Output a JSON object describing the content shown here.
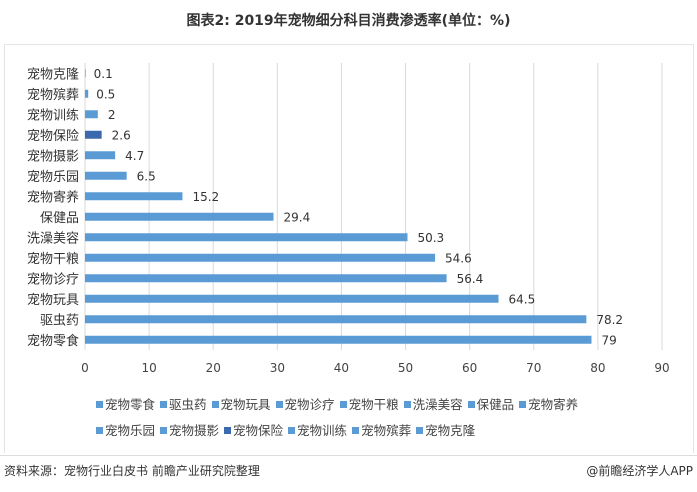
{
  "title": "图表2: 2019年宠物细分科目消费渗透率(单位：%)",
  "source": "资料来源：宠物行业白皮书 前瞻产业研究院整理",
  "credit": "@前瞻经济学人APP",
  "chart_data": {
    "type": "bar",
    "orientation": "horizontal",
    "title": "图表2: 2019年宠物细分科目消费渗透率(单位：%)",
    "categories": [
      "宠物克隆",
      "宠物殡葬",
      "宠物训练",
      "宠物保险",
      "宠物摄影",
      "宠物乐园",
      "宠物寄养",
      "保健品",
      "洗澡美容",
      "宠物干粮",
      "宠物诊疗",
      "宠物玩具",
      "驱虫药",
      "宠物零食"
    ],
    "values": [
      0.1,
      0.5,
      2,
      2.6,
      4.7,
      6.5,
      15.2,
      29.4,
      50.3,
      54.6,
      56.4,
      64.5,
      78.2,
      79
    ],
    "colors": [
      "#5b9bd5",
      "#5b9bd5",
      "#5b9bd5",
      "#3a6aad",
      "#5b9bd5",
      "#5b9bd5",
      "#5b9bd5",
      "#5b9bd5",
      "#5b9bd5",
      "#5b9bd5",
      "#5b9bd5",
      "#5b9bd5",
      "#5b9bd5",
      "#5b9bd5"
    ],
    "xlim": [
      0,
      90
    ],
    "xticks": [
      0,
      10,
      20,
      30,
      40,
      50,
      60,
      70,
      80,
      90
    ],
    "grid": true,
    "legend_position": "bottom",
    "legend": [
      "宠物零食",
      "驱虫药",
      "宠物玩具",
      "宠物诊疗",
      "宠物干粮",
      "洗澡美容",
      "保健品",
      "宠物寄养",
      "宠物乐园",
      "宠物摄影",
      "宠物保险",
      "宠物训练",
      "宠物殡葬",
      "宠物克隆"
    ]
  }
}
